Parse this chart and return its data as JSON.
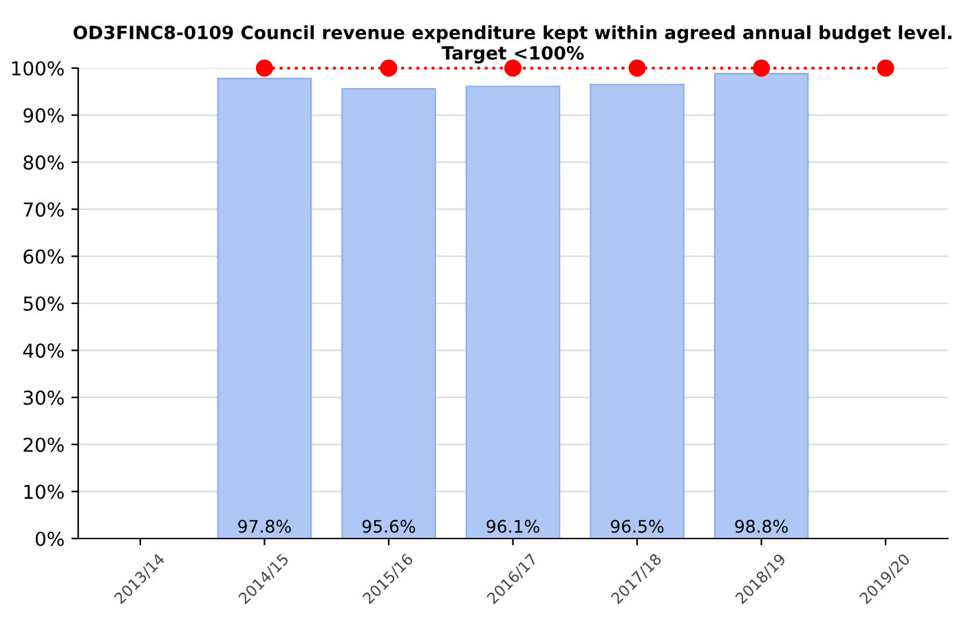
{
  "chart_data": {
    "type": "bar",
    "title": "OD3FINC8-0109 Council revenue expenditure kept within agreed annual budget level.\nTarget <100%",
    "categories": [
      "2013/14",
      "2014/15",
      "2015/16",
      "2016/17",
      "2017/18",
      "2018/19",
      "2019/20"
    ],
    "series": [
      {
        "color": "#aec7f5",
        "values": [
          null,
          97.8,
          95.6,
          96.1,
          96.5,
          98.8,
          null
        ],
        "value_labels": [
          null,
          "97.8%",
          "95.6%",
          "96.1%",
          "96.5%",
          "98.8%",
          null
        ]
      },
      {
        "type": "line",
        "color": "#ff0000",
        "values": [
          null,
          100,
          100,
          100,
          100,
          100,
          100
        ],
        "marker": "circle",
        "line_style": "dotted"
      }
    ],
    "ylim": [
      0,
      100
    ],
    "yticks": [
      {
        "value": 0,
        "label": "0%"
      },
      {
        "value": 10,
        "label": "10%"
      },
      {
        "value": 20,
        "label": "20%"
      },
      {
        "value": 30,
        "label": "30%"
      },
      {
        "value": 40,
        "label": "40%"
      },
      {
        "value": 50,
        "label": "50%"
      },
      {
        "value": 60,
        "label": "60%"
      },
      {
        "value": 70,
        "label": "70%"
      },
      {
        "value": 80,
        "label": "80%"
      },
      {
        "value": 90,
        "label": "90%"
      },
      {
        "value": 100,
        "label": "100%"
      }
    ],
    "grid": "y",
    "legend": false
  }
}
